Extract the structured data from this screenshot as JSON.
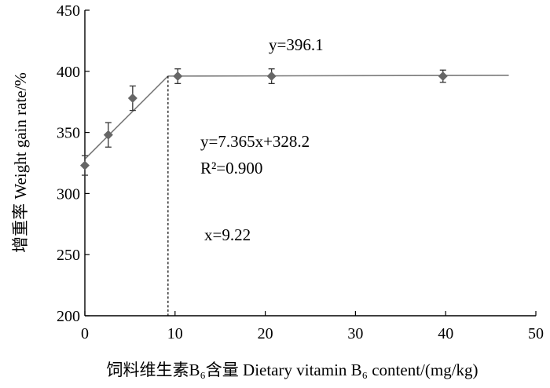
{
  "chart_data": {
    "type": "scatter",
    "title": "",
    "xlabel": "饲料维生素B₆含量  Dietary vitamin B₆ content/(mg/kg)",
    "ylabel": "增重率  Weight gain rate/%",
    "xlim": [
      0,
      50
    ],
    "ylim": [
      200,
      450
    ],
    "xticks": [
      "0",
      "10",
      "20",
      "30",
      "40",
      "50"
    ],
    "yticks": [
      "200",
      "250",
      "300",
      "350",
      "400",
      "450"
    ],
    "grid": false,
    "points": [
      {
        "x": 0,
        "y": 323,
        "err": 8
      },
      {
        "x": 2.6,
        "y": 348,
        "err": 10
      },
      {
        "x": 5.3,
        "y": 378,
        "err": 10
      },
      {
        "x": 10.3,
        "y": 396,
        "err": 6
      },
      {
        "x": 20.7,
        "y": 396,
        "err": 6
      },
      {
        "x": 39.7,
        "y": 396,
        "err": 5
      }
    ],
    "fit": {
      "breakpoint_x": 9.22,
      "end_x": 47,
      "slope": 7.365,
      "intercept": 328.2,
      "plateau_y": 396.1
    },
    "annotations": {
      "plateau_eq": "y=396.1",
      "linear_eq": "y=7.365x+328.2",
      "r2": "R²=0.900",
      "break": "x=9.22"
    }
  }
}
